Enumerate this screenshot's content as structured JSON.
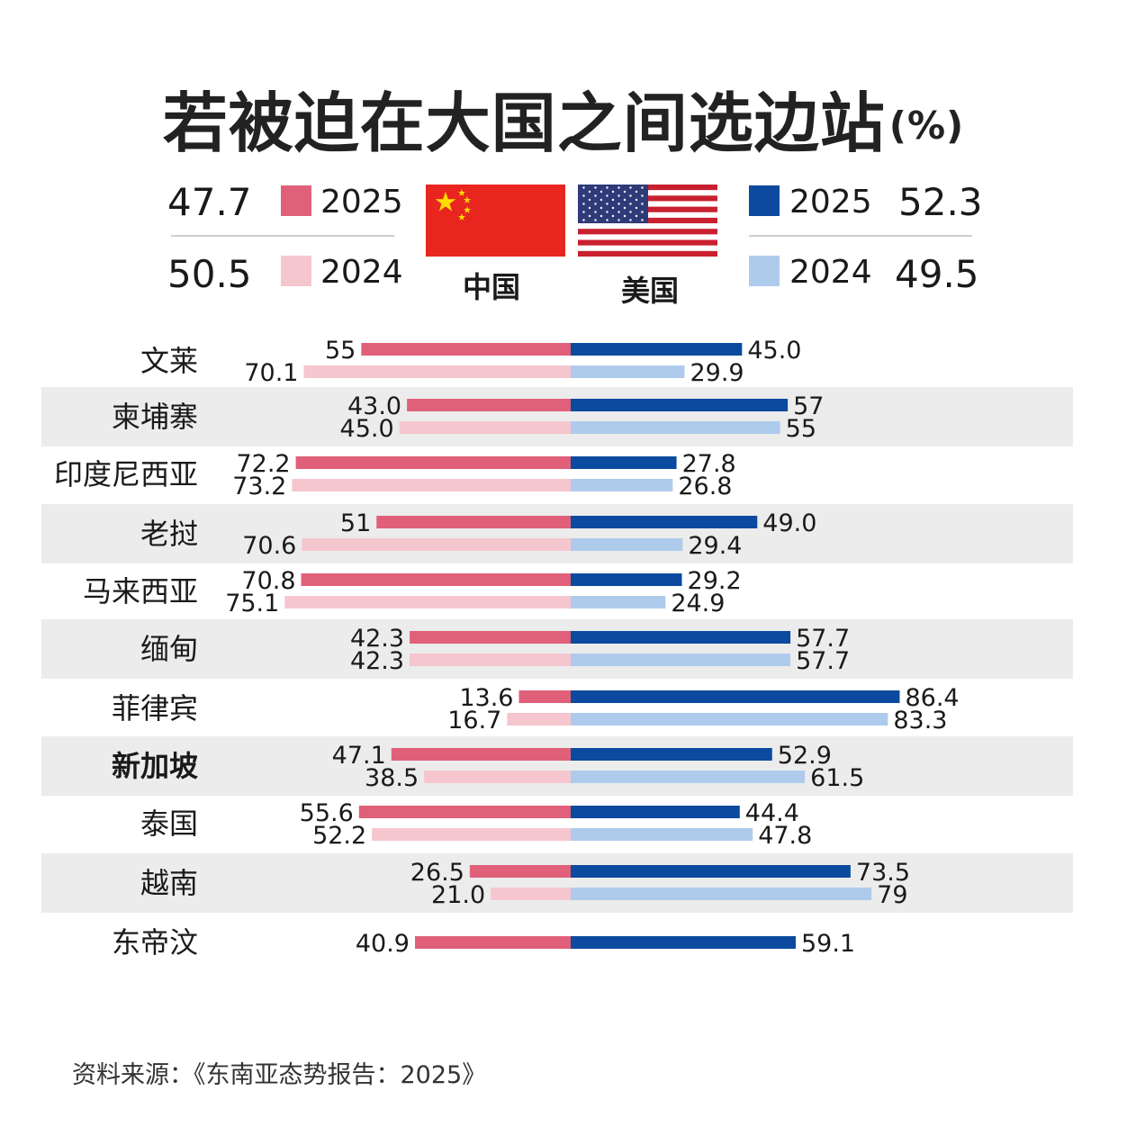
{
  "title": "若被迫在大国之间选边站",
  "title_unit": "(%)",
  "legend": {
    "china": {
      "label": "中国",
      "rows": [
        {
          "year": "2025",
          "value": "47.7",
          "color": "#e0607a"
        },
        {
          "year": "2024",
          "value": "50.5",
          "color": "#f5c6ce"
        }
      ]
    },
    "usa": {
      "label": "美国",
      "rows": [
        {
          "year": "2025",
          "value": "52.3",
          "color": "#0b4a9e"
        },
        {
          "year": "2024",
          "value": "49.5",
          "color": "#aecbec"
        }
      ]
    }
  },
  "source": "资料来源：《东南亚态势报告：2025》",
  "colors": {
    "china_2025": "#e0607a",
    "china_2024": "#f5c6ce",
    "usa_2025": "#0b4a9e",
    "usa_2024": "#aecbec",
    "band": "#ececec"
  },
  "chart_data": {
    "type": "bar",
    "orientation": "horizontal-diverging",
    "title": "若被迫在大国之间选边站",
    "xlim": [
      0,
      100
    ],
    "categories": [
      "文莱",
      "柬埔寨",
      "印度尼西亚",
      "老挝",
      "马来西亚",
      "缅甸",
      "菲律宾",
      "新加坡",
      "泰国",
      "越南",
      "东帝汶"
    ],
    "series": [
      {
        "name": "中国 2025",
        "side": "left",
        "values": [
          55,
          43.0,
          72.2,
          51,
          70.8,
          42.3,
          13.6,
          47.1,
          55.6,
          26.5,
          40.9
        ],
        "labels": [
          "55",
          "43.0",
          "72.2",
          "51",
          "70.8",
          "42.3",
          "13.6",
          "47.1",
          "55.6",
          "26.5",
          "40.9"
        ]
      },
      {
        "name": "中国 2024",
        "side": "left",
        "values": [
          70.1,
          45.0,
          73.2,
          70.6,
          75.1,
          42.3,
          16.7,
          38.5,
          52.2,
          21.0,
          null
        ],
        "labels": [
          "70.1",
          "45.0",
          "73.2",
          "70.6",
          "75.1",
          "42.3",
          "16.7",
          "38.5",
          "52.2",
          "21.0",
          null
        ]
      },
      {
        "name": "美国 2025",
        "side": "right",
        "values": [
          45.0,
          57,
          27.8,
          49.0,
          29.2,
          57.7,
          86.4,
          52.9,
          44.4,
          73.5,
          59.1
        ],
        "labels": [
          "45.0",
          "57",
          "27.8",
          "49.0",
          "29.2",
          "57.7",
          "86.4",
          "52.9",
          "44.4",
          "73.5",
          "59.1"
        ]
      },
      {
        "name": "美国 2024",
        "side": "right",
        "values": [
          29.9,
          55,
          26.8,
          29.4,
          24.9,
          57.7,
          83.3,
          61.5,
          47.8,
          79,
          null
        ],
        "labels": [
          "29.9",
          "55",
          "26.8",
          "29.4",
          "24.9",
          "57.7",
          "83.3",
          "61.5",
          "47.8",
          "79",
          null
        ]
      }
    ],
    "bold_category": "新加坡",
    "banded_rows": [
      1,
      3,
      5,
      7,
      9
    ]
  }
}
